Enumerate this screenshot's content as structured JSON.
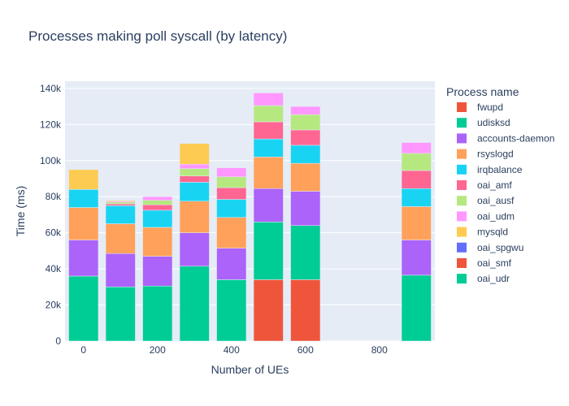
{
  "chart_data": {
    "type": "bar",
    "stacked": true,
    "title": "Processes making poll syscall (by latency)",
    "xlabel": "Number of UEs",
    "ylabel": "Time (ms)",
    "xlim": [
      -50,
      950
    ],
    "ylim": [
      0,
      144000
    ],
    "x_ticks": [
      {
        "value": 0,
        "label": "0"
      },
      {
        "value": 200,
        "label": "200"
      },
      {
        "value": 400,
        "label": "400"
      },
      {
        "value": 600,
        "label": "600"
      },
      {
        "value": 800,
        "label": "800"
      }
    ],
    "y_ticks": [
      {
        "value": 0,
        "label": "0"
      },
      {
        "value": 20000,
        "label": "20k"
      },
      {
        "value": 40000,
        "label": "40k"
      },
      {
        "value": 60000,
        "label": "60k"
      },
      {
        "value": 80000,
        "label": "80k"
      },
      {
        "value": 100000,
        "label": "100k"
      },
      {
        "value": 120000,
        "label": "120k"
      },
      {
        "value": 140000,
        "label": "140k"
      }
    ],
    "grid": true,
    "legend_position": "right",
    "legend_title": "Process name",
    "x": [
      0,
      100,
      200,
      300,
      400,
      500,
      600,
      900
    ],
    "series": [
      {
        "name": "fwupd",
        "color": "#EF553B",
        "values": [
          0,
          0,
          0,
          0,
          0,
          34000,
          34000,
          0
        ]
      },
      {
        "name": "udisksd",
        "color": "#00CC96",
        "values": [
          36000,
          30000,
          30500,
          41500,
          34000,
          32000,
          30000,
          36500
        ]
      },
      {
        "name": "accounts-daemon",
        "color": "#AB63FA",
        "values": [
          20000,
          18500,
          16500,
          18500,
          17500,
          18500,
          19000,
          19500
        ]
      },
      {
        "name": "rsyslogd",
        "color": "#FFA15A",
        "values": [
          18000,
          16500,
          16000,
          17500,
          17000,
          17500,
          15500,
          18500
        ]
      },
      {
        "name": "irqbalance",
        "color": "#19D3F3",
        "values": [
          10000,
          10000,
          9500,
          10500,
          10000,
          10000,
          10000,
          10000
        ]
      },
      {
        "name": "oai_amf",
        "color": "#FF6692",
        "values": [
          0,
          1000,
          3000,
          3500,
          6500,
          9500,
          8500,
          10000
        ]
      },
      {
        "name": "oai_ausf",
        "color": "#B6E880",
        "values": [
          0,
          1000,
          2500,
          4000,
          6000,
          9000,
          8500,
          9500
        ]
      },
      {
        "name": "oai_udm",
        "color": "#FF97FF",
        "values": [
          0,
          500,
          2000,
          2500,
          5000,
          7000,
          4500,
          6000
        ]
      },
      {
        "name": "mysqld",
        "color": "#FECB52",
        "values": [
          11000,
          500,
          0,
          11500,
          0,
          0,
          0,
          0
        ]
      },
      {
        "name": "oai_spgwu",
        "color": "#636EFA",
        "values": [
          0,
          0,
          0,
          0,
          0,
          0,
          0,
          0
        ]
      },
      {
        "name": "oai_smf",
        "color": "#EF553B",
        "values": [
          0,
          0,
          0,
          0,
          0,
          0,
          0,
          0
        ]
      },
      {
        "name": "oai_udr",
        "color": "#00CC96",
        "values": [
          0,
          0,
          0,
          0,
          0,
          0,
          0,
          0
        ]
      }
    ],
    "stack_order_bottom_to_top": [
      "fwupd",
      "udisksd",
      "accounts-daemon",
      "rsyslogd",
      "irqbalance",
      "oai_amf",
      "oai_ausf",
      "oai_udm",
      "mysqld",
      "oai_spgwu",
      "oai_smf",
      "oai_udr"
    ]
  },
  "colors": {
    "plot_background": "#E5ECF6",
    "gridline": "#ffffff",
    "text": "#2a3f5f"
  }
}
